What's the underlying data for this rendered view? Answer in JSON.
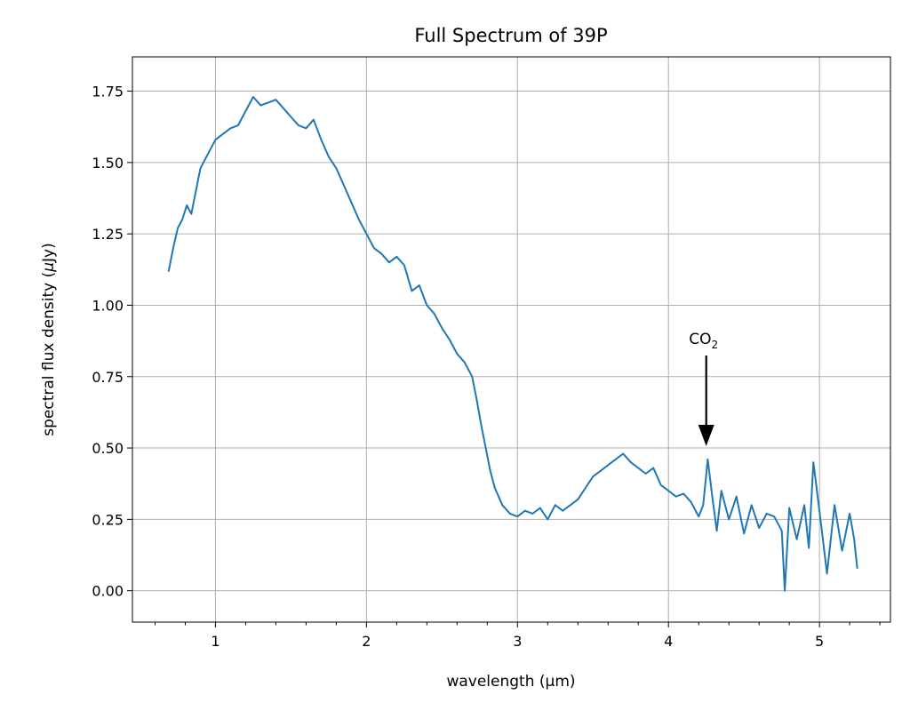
{
  "chart_data": {
    "type": "line",
    "title": "Full Spectrum of 39P",
    "xlabel": "wavelength (µm)",
    "ylabel_parts": [
      "spectral flux density (",
      "μ",
      "Jy)"
    ],
    "xlim": [
      0.45,
      5.47
    ],
    "ylim": [
      -0.11,
      1.87
    ],
    "xticks": [
      1,
      2,
      3,
      4,
      5
    ],
    "yticks": [
      0.0,
      0.25,
      0.5,
      0.75,
      1.0,
      1.25,
      1.5,
      1.75
    ],
    "ytick_labels": [
      "0.00",
      "0.25",
      "0.50",
      "0.75",
      "1.00",
      "1.25",
      "1.50",
      "1.75"
    ],
    "grid": true,
    "series": [
      {
        "color": "#1f77b4",
        "x": [
          0.69,
          0.72,
          0.75,
          0.78,
          0.81,
          0.84,
          0.87,
          0.9,
          0.95,
          1.0,
          1.05,
          1.1,
          1.15,
          1.2,
          1.25,
          1.3,
          1.35,
          1.4,
          1.45,
          1.5,
          1.55,
          1.6,
          1.65,
          1.7,
          1.75,
          1.8,
          1.85,
          1.9,
          1.95,
          2.0,
          2.05,
          2.1,
          2.15,
          2.2,
          2.25,
          2.3,
          2.35,
          2.4,
          2.45,
          2.5,
          2.55,
          2.6,
          2.65,
          2.7,
          2.73,
          2.76,
          2.79,
          2.82,
          2.85,
          2.9,
          2.95,
          3.0,
          3.05,
          3.1,
          3.15,
          3.2,
          3.25,
          3.3,
          3.35,
          3.4,
          3.45,
          3.5,
          3.55,
          3.6,
          3.65,
          3.7,
          3.75,
          3.8,
          3.85,
          3.9,
          3.95,
          4.0,
          4.05,
          4.1,
          4.15,
          4.2,
          4.23,
          4.26,
          4.29,
          4.32,
          4.35,
          4.4,
          4.45,
          4.5,
          4.55,
          4.6,
          4.65,
          4.7,
          4.75,
          4.77,
          4.8,
          4.85,
          4.9,
          4.93,
          4.96,
          5.0,
          5.05,
          5.1,
          5.15,
          5.2,
          5.23,
          5.25
        ],
        "y": [
          1.12,
          1.2,
          1.27,
          1.3,
          1.35,
          1.32,
          1.4,
          1.48,
          1.53,
          1.58,
          1.6,
          1.62,
          1.63,
          1.68,
          1.73,
          1.7,
          1.71,
          1.72,
          1.69,
          1.66,
          1.63,
          1.62,
          1.65,
          1.58,
          1.52,
          1.48,
          1.42,
          1.36,
          1.3,
          1.25,
          1.2,
          1.18,
          1.15,
          1.17,
          1.14,
          1.05,
          1.07,
          1.0,
          0.97,
          0.92,
          0.88,
          0.83,
          0.8,
          0.75,
          0.67,
          0.58,
          0.5,
          0.42,
          0.36,
          0.3,
          0.27,
          0.26,
          0.28,
          0.27,
          0.29,
          0.25,
          0.3,
          0.28,
          0.3,
          0.32,
          0.36,
          0.4,
          0.42,
          0.44,
          0.46,
          0.48,
          0.45,
          0.43,
          0.41,
          0.43,
          0.37,
          0.35,
          0.33,
          0.34,
          0.31,
          0.26,
          0.3,
          0.46,
          0.33,
          0.21,
          0.35,
          0.25,
          0.33,
          0.2,
          0.3,
          0.22,
          0.27,
          0.26,
          0.21,
          0.0,
          0.29,
          0.18,
          0.3,
          0.15,
          0.45,
          0.28,
          0.06,
          0.3,
          0.14,
          0.27,
          0.18,
          0.08
        ]
      }
    ],
    "annotations": [
      {
        "text": "CO",
        "subscript": "2",
        "x": 4.25,
        "y": 0.5
      }
    ]
  }
}
